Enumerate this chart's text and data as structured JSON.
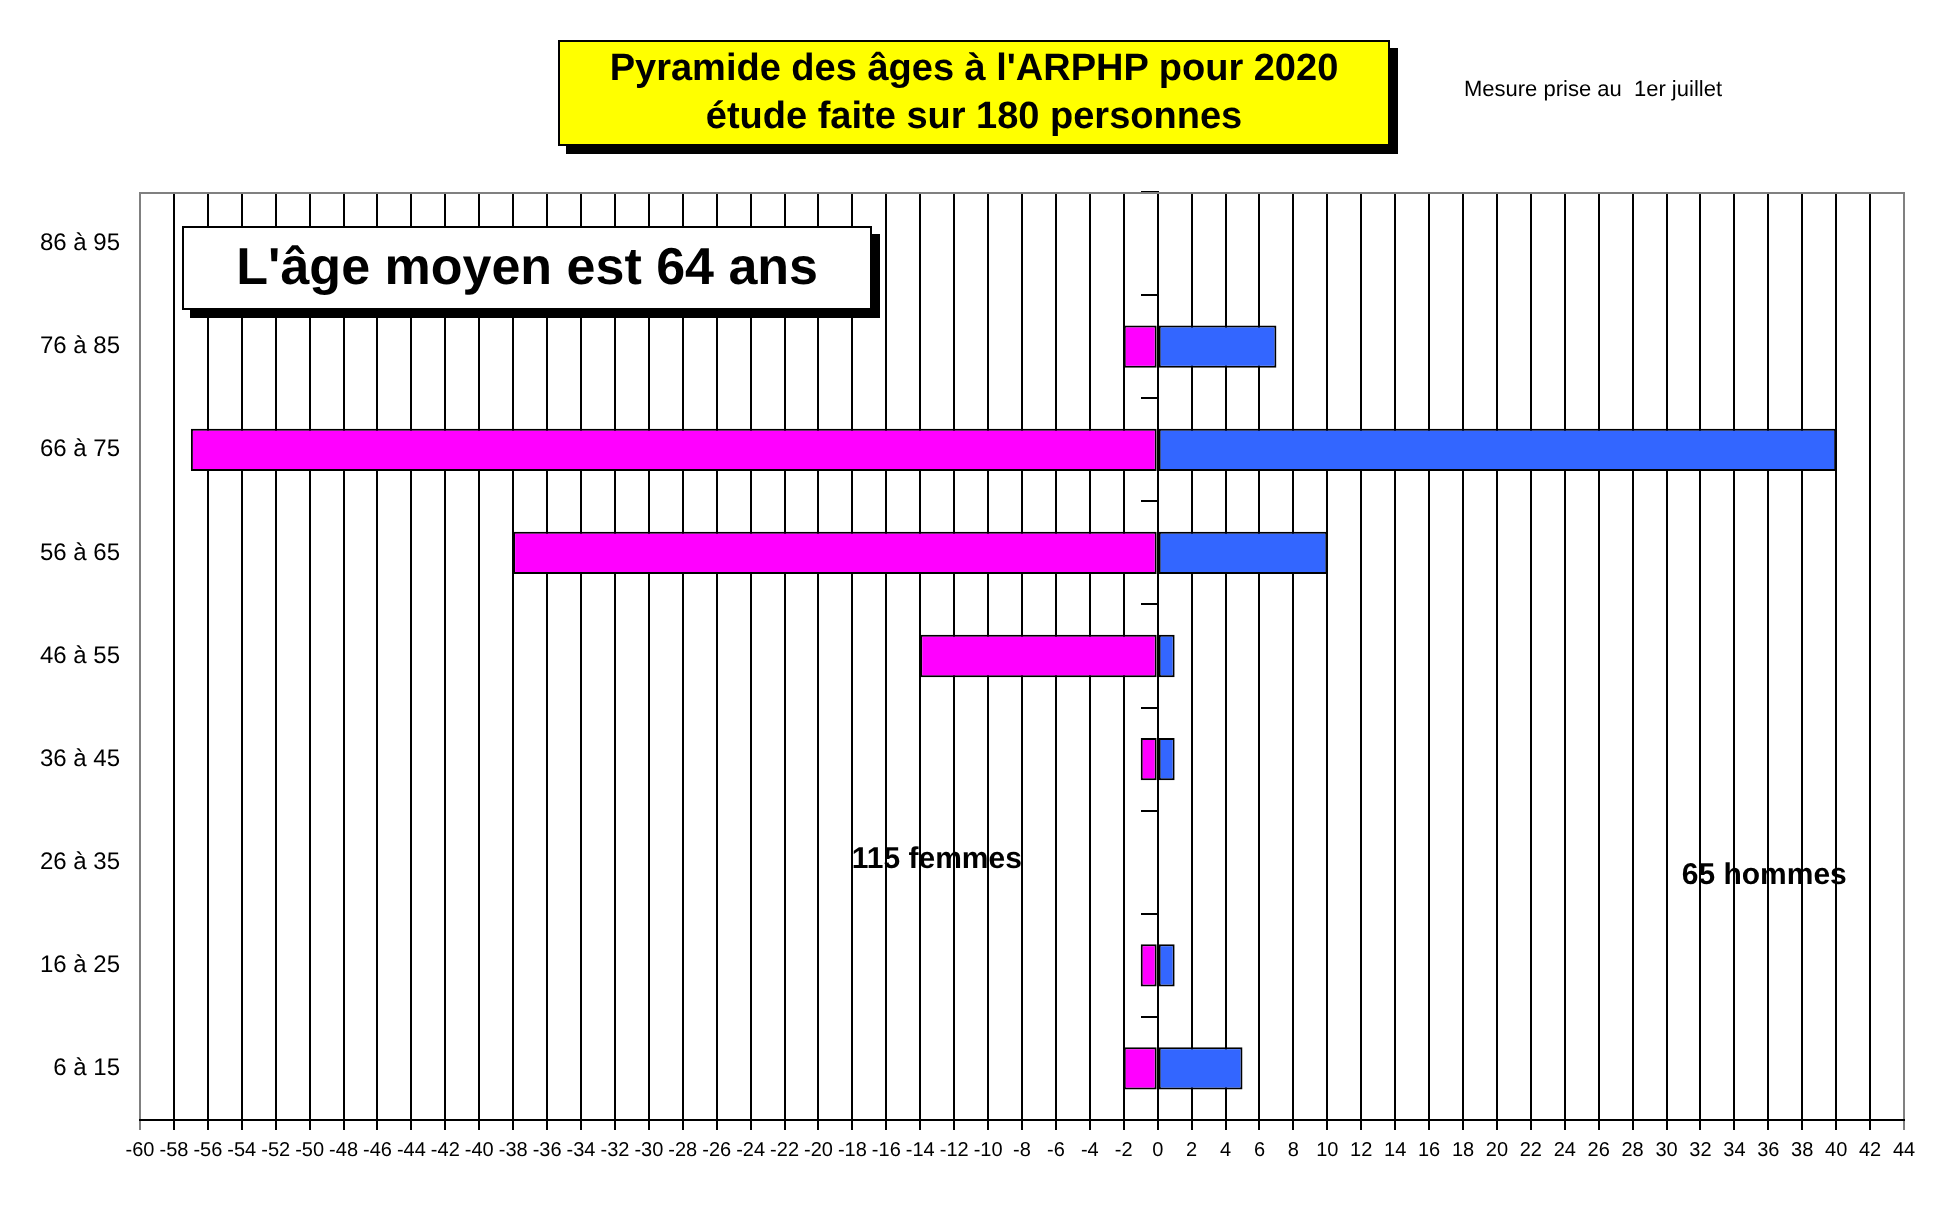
{
  "chart_data": {
    "type": "bar",
    "orientation": "horizontal",
    "stacked": true,
    "title": "Pyramide des âges à l'ARPHP pour 2020",
    "subtitle": "étude faite sur 180 personnes",
    "annotations": [
      "Mesure prise au  1er juillet",
      "L'âge moyen est 64 ans",
      "115 femmes",
      "65 hommes"
    ],
    "categories": [
      "86 à 95",
      "76 à 85",
      "66 à 75",
      "56 à 65",
      "46 à 55",
      "36 à 45",
      "26 à 35",
      "16 à 25",
      "6 à 15"
    ],
    "series": [
      {
        "color": "#ff00ff",
        "values": [
          0,
          -2,
          -57,
          -38,
          -14,
          -1,
          0,
          -1,
          -2
        ]
      },
      {
        "color": "#3366ff",
        "values": [
          0,
          7,
          40,
          10,
          1,
          1,
          0,
          1,
          5
        ]
      }
    ],
    "xlim": [
      -60,
      44
    ],
    "xticks": [
      -60,
      -58,
      -56,
      -54,
      -52,
      -50,
      -48,
      -46,
      -44,
      -42,
      -40,
      -38,
      -36,
      -34,
      -32,
      -30,
      -28,
      -26,
      -24,
      -22,
      -20,
      -18,
      -16,
      -14,
      -12,
      -10,
      -8,
      -6,
      -4,
      -2,
      0,
      2,
      4,
      6,
      8,
      10,
      12,
      14,
      16,
      18,
      20,
      22,
      24,
      26,
      28,
      30,
      32,
      34,
      36,
      38,
      40,
      42,
      44
    ],
    "grid": "x",
    "legend": false
  }
}
